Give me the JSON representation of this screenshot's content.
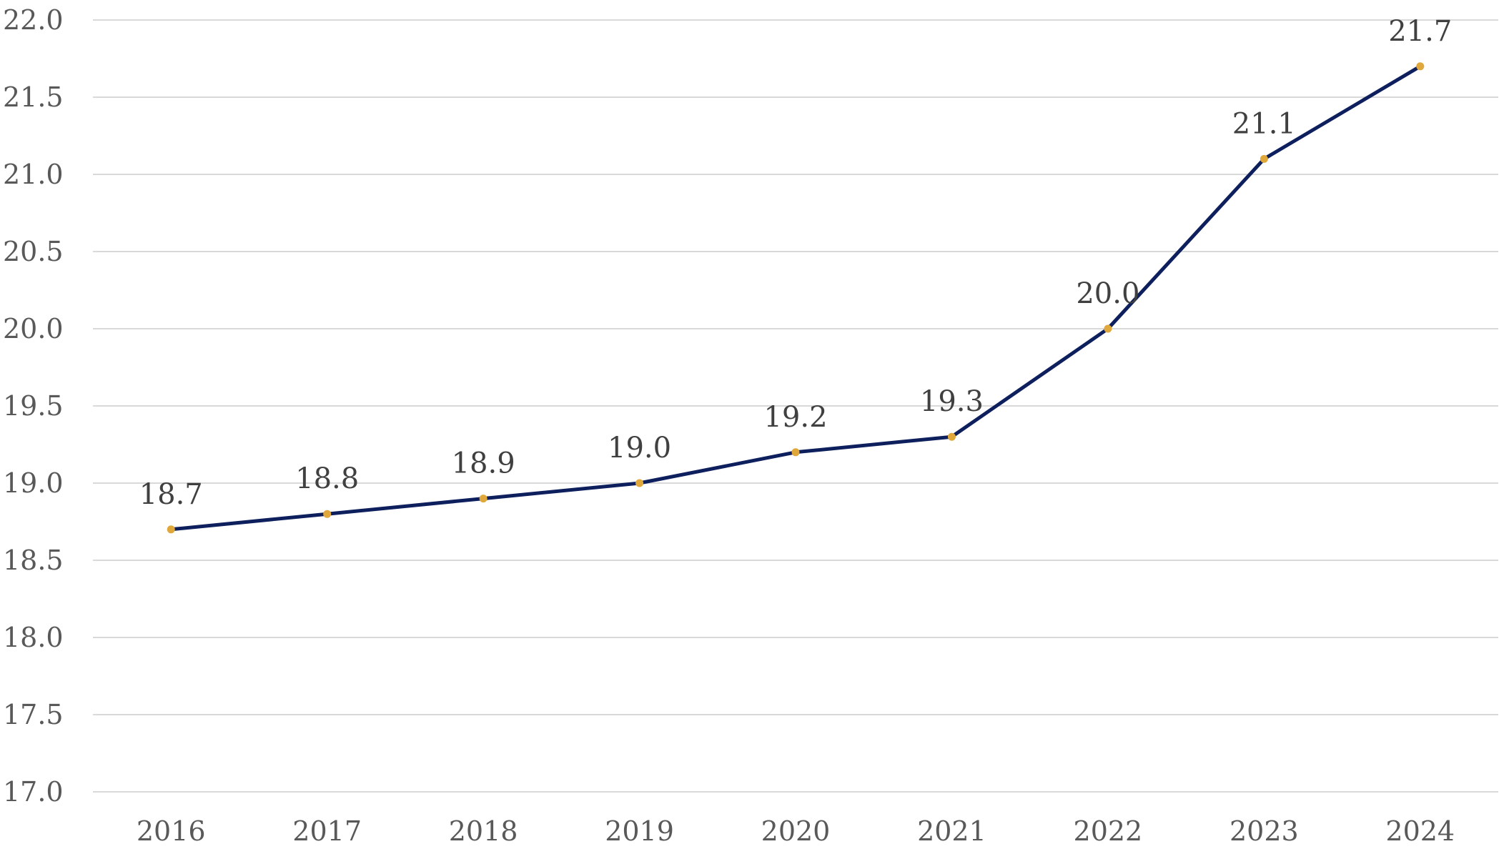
{
  "chart_data": {
    "type": "line",
    "categories": [
      "2016",
      "2017",
      "2018",
      "2019",
      "2020",
      "2021",
      "2022",
      "2023",
      "2024"
    ],
    "series": [
      {
        "values": [
          18.7,
          18.8,
          18.9,
          19.0,
          19.2,
          19.3,
          20.0,
          21.1,
          21.7
        ],
        "data_labels": [
          "18.7",
          "18.8",
          "18.9",
          "19.0",
          "19.2",
          "19.3",
          "20.0",
          "21.1",
          "21.7"
        ],
        "line_color": "#0d1f5c",
        "marker_color": "#e0a83a"
      }
    ],
    "ylim": [
      17.0,
      22.0
    ],
    "y_ticks": [
      17.0,
      17.5,
      18.0,
      18.5,
      19.0,
      19.5,
      20.0,
      20.5,
      21.0,
      21.5,
      22.0
    ],
    "y_tick_labels": [
      "17.0",
      "17.5",
      "18.0",
      "18.5",
      "19.0",
      "19.5",
      "20.0",
      "20.5",
      "21.0",
      "21.5",
      "22.0"
    ],
    "grid": true,
    "legend": "none",
    "grid_color": "#d9d9d9"
  }
}
